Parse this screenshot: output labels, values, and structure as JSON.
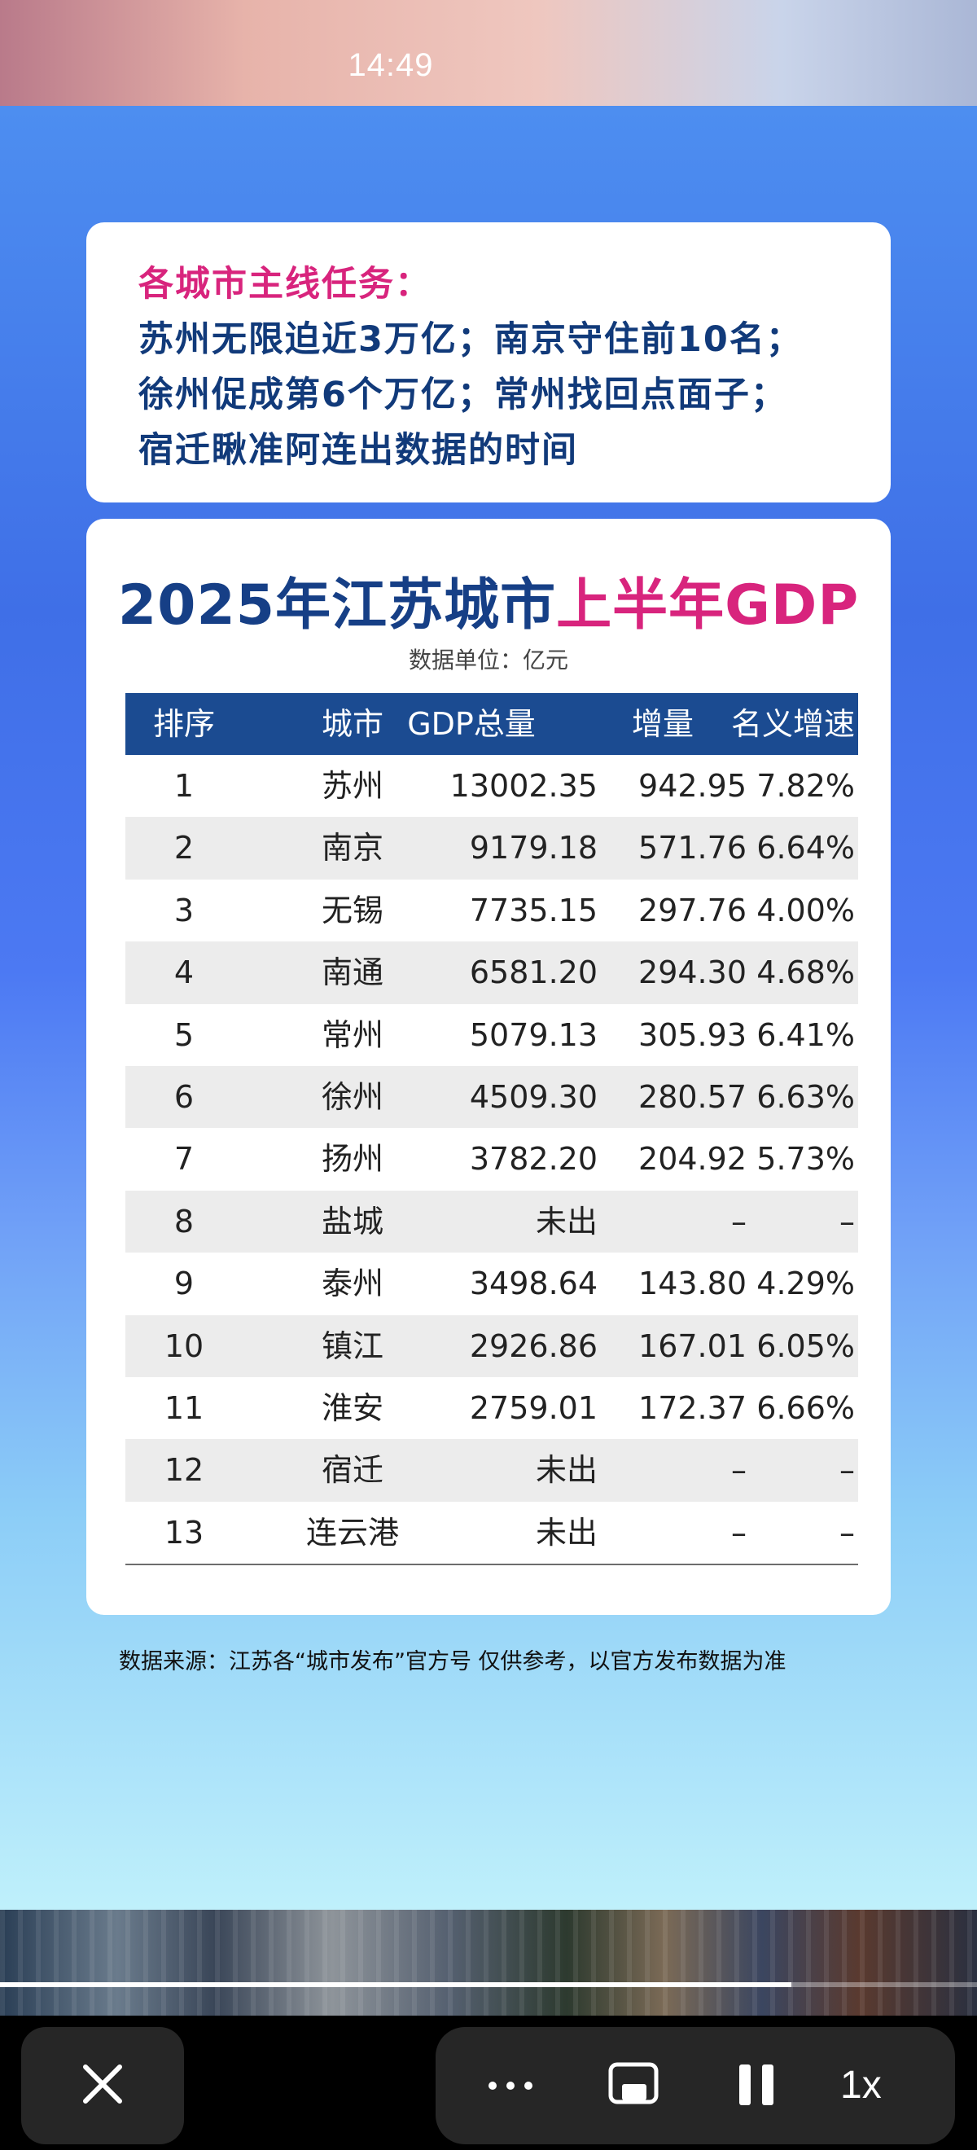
{
  "status_bar": {
    "time": "14:49"
  },
  "mission_card": {
    "title": "各城市主线任务：",
    "lines": [
      "苏州无限迫近3万亿；南京守住前10名；",
      "徐州促成第6个万亿；常州找回点面子；",
      "宿迁瞅准阿连出数据的时间"
    ]
  },
  "table_card": {
    "title_part1": "2025年江苏城市",
    "title_part2": "上半年GDP",
    "unit": "数据单位：亿元",
    "columns": [
      "排序",
      "城市",
      "GDP总量",
      "增量",
      "名义增速"
    ],
    "rows": [
      {
        "rank": "1",
        "city": "苏州",
        "gdp": "13002.35",
        "increase": "942.95",
        "growth": "7.82%"
      },
      {
        "rank": "2",
        "city": "南京",
        "gdp": "9179.18",
        "increase": "571.76",
        "growth": "6.64%"
      },
      {
        "rank": "3",
        "city": "无锡",
        "gdp": "7735.15",
        "increase": "297.76",
        "growth": "4.00%"
      },
      {
        "rank": "4",
        "city": "南通",
        "gdp": "6581.20",
        "increase": "294.30",
        "growth": "4.68%"
      },
      {
        "rank": "5",
        "city": "常州",
        "gdp": "5079.13",
        "increase": "305.93",
        "growth": "6.41%"
      },
      {
        "rank": "6",
        "city": "徐州",
        "gdp": "4509.30",
        "increase": "280.57",
        "growth": "6.63%"
      },
      {
        "rank": "7",
        "city": "扬州",
        "gdp": "3782.20",
        "increase": "204.92",
        "growth": "5.73%"
      },
      {
        "rank": "8",
        "city": "盐城",
        "gdp": "未出",
        "increase": "–",
        "growth": "–"
      },
      {
        "rank": "9",
        "city": "泰州",
        "gdp": "3498.64",
        "increase": "143.80",
        "growth": "4.29%"
      },
      {
        "rank": "10",
        "city": "镇江",
        "gdp": "2926.86",
        "increase": "167.01",
        "growth": "6.05%"
      },
      {
        "rank": "11",
        "city": "淮安",
        "gdp": "2759.01",
        "increase": "172.37",
        "growth": "6.66%"
      },
      {
        "rank": "12",
        "city": "宿迁",
        "gdp": "未出",
        "increase": "–",
        "growth": "–"
      },
      {
        "rank": "13",
        "city": "连云港",
        "gdp": "未出",
        "increase": "–",
        "growth": "–"
      }
    ]
  },
  "source_note": "数据来源：江苏各“城市发布”官方号    仅供参考，以官方发布数据为准",
  "player": {
    "progress": 0.81,
    "speed": "1x",
    "controls": [
      "close-icon",
      "more-icon",
      "pip-icon",
      "pause-icon"
    ]
  },
  "colors": {
    "header_bg": "#1b4b91",
    "title_blue": "#163f86",
    "accent_pink": "#d8247d",
    "mission_text": "#113a7a"
  }
}
